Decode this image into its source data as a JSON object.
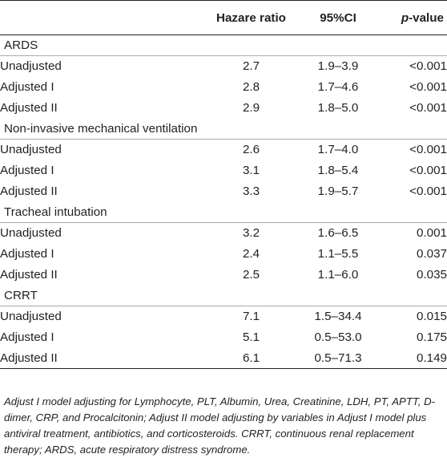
{
  "table": {
    "headers": [
      "",
      "Hazare ratio",
      "95%CI",
      "value"
    ],
    "p_prefix": "p",
    "groups": [
      {
        "name": "ARDS",
        "rows": [
          {
            "label": "Unadjusted",
            "hr": "2.7",
            "ci": "1.9–3.9",
            "p": "<0.001"
          },
          {
            "label": "Adjusted I",
            "hr": "2.8",
            "ci": "1.7–4.6",
            "p": "<0.001"
          },
          {
            "label": "Adjusted II",
            "hr": "2.9",
            "ci": "1.8–5.0",
            "p": "<0.001"
          }
        ]
      },
      {
        "name": "Non-invasive mechanical ventilation",
        "rows": [
          {
            "label": "Unadjusted",
            "hr": "2.6",
            "ci": "1.7–4.0",
            "p": "<0.001"
          },
          {
            "label": "Adjusted I",
            "hr": "3.1",
            "ci": "1.8–5.4",
            "p": "<0.001"
          },
          {
            "label": "Adjusted II",
            "hr": "3.3",
            "ci": "1.9–5.7",
            "p": "<0.001"
          }
        ]
      },
      {
        "name": "Tracheal intubation",
        "rows": [
          {
            "label": "Unadjusted",
            "hr": "3.2",
            "ci": "1.6–6.5",
            "p": "0.001"
          },
          {
            "label": "Adjusted I",
            "hr": "2.4",
            "ci": "1.1–5.5",
            "p": "0.037"
          },
          {
            "label": "Adjusted II",
            "hr": "2.5",
            "ci": "1.1–6.0",
            "p": "0.035"
          }
        ]
      },
      {
        "name": "CRRT",
        "rows": [
          {
            "label": "Unadjusted",
            "hr": "7.1",
            "ci": "1.5–34.4",
            "p": "0.015"
          },
          {
            "label": "Adjusted I",
            "hr": "5.1",
            "ci": "0.5–53.0",
            "p": "0.175"
          },
          {
            "label": "Adjusted II",
            "hr": "6.1",
            "ci": "0.5–71.3",
            "p": "0.149"
          }
        ]
      }
    ]
  },
  "footnote": "Adjust I model adjusting for Lymphocyte, PLT, Albumin, Urea, Creatinine, LDH, PT, APTT, D-dimer, CRP, and Procalcitonin; Adjust II model adjusting by variables in Adjust I model plus antiviral treatment, antibiotics, and corticosteroids. CRRT, continuous renal replacement therapy; ARDS, acute respiratory distress syndrome."
}
